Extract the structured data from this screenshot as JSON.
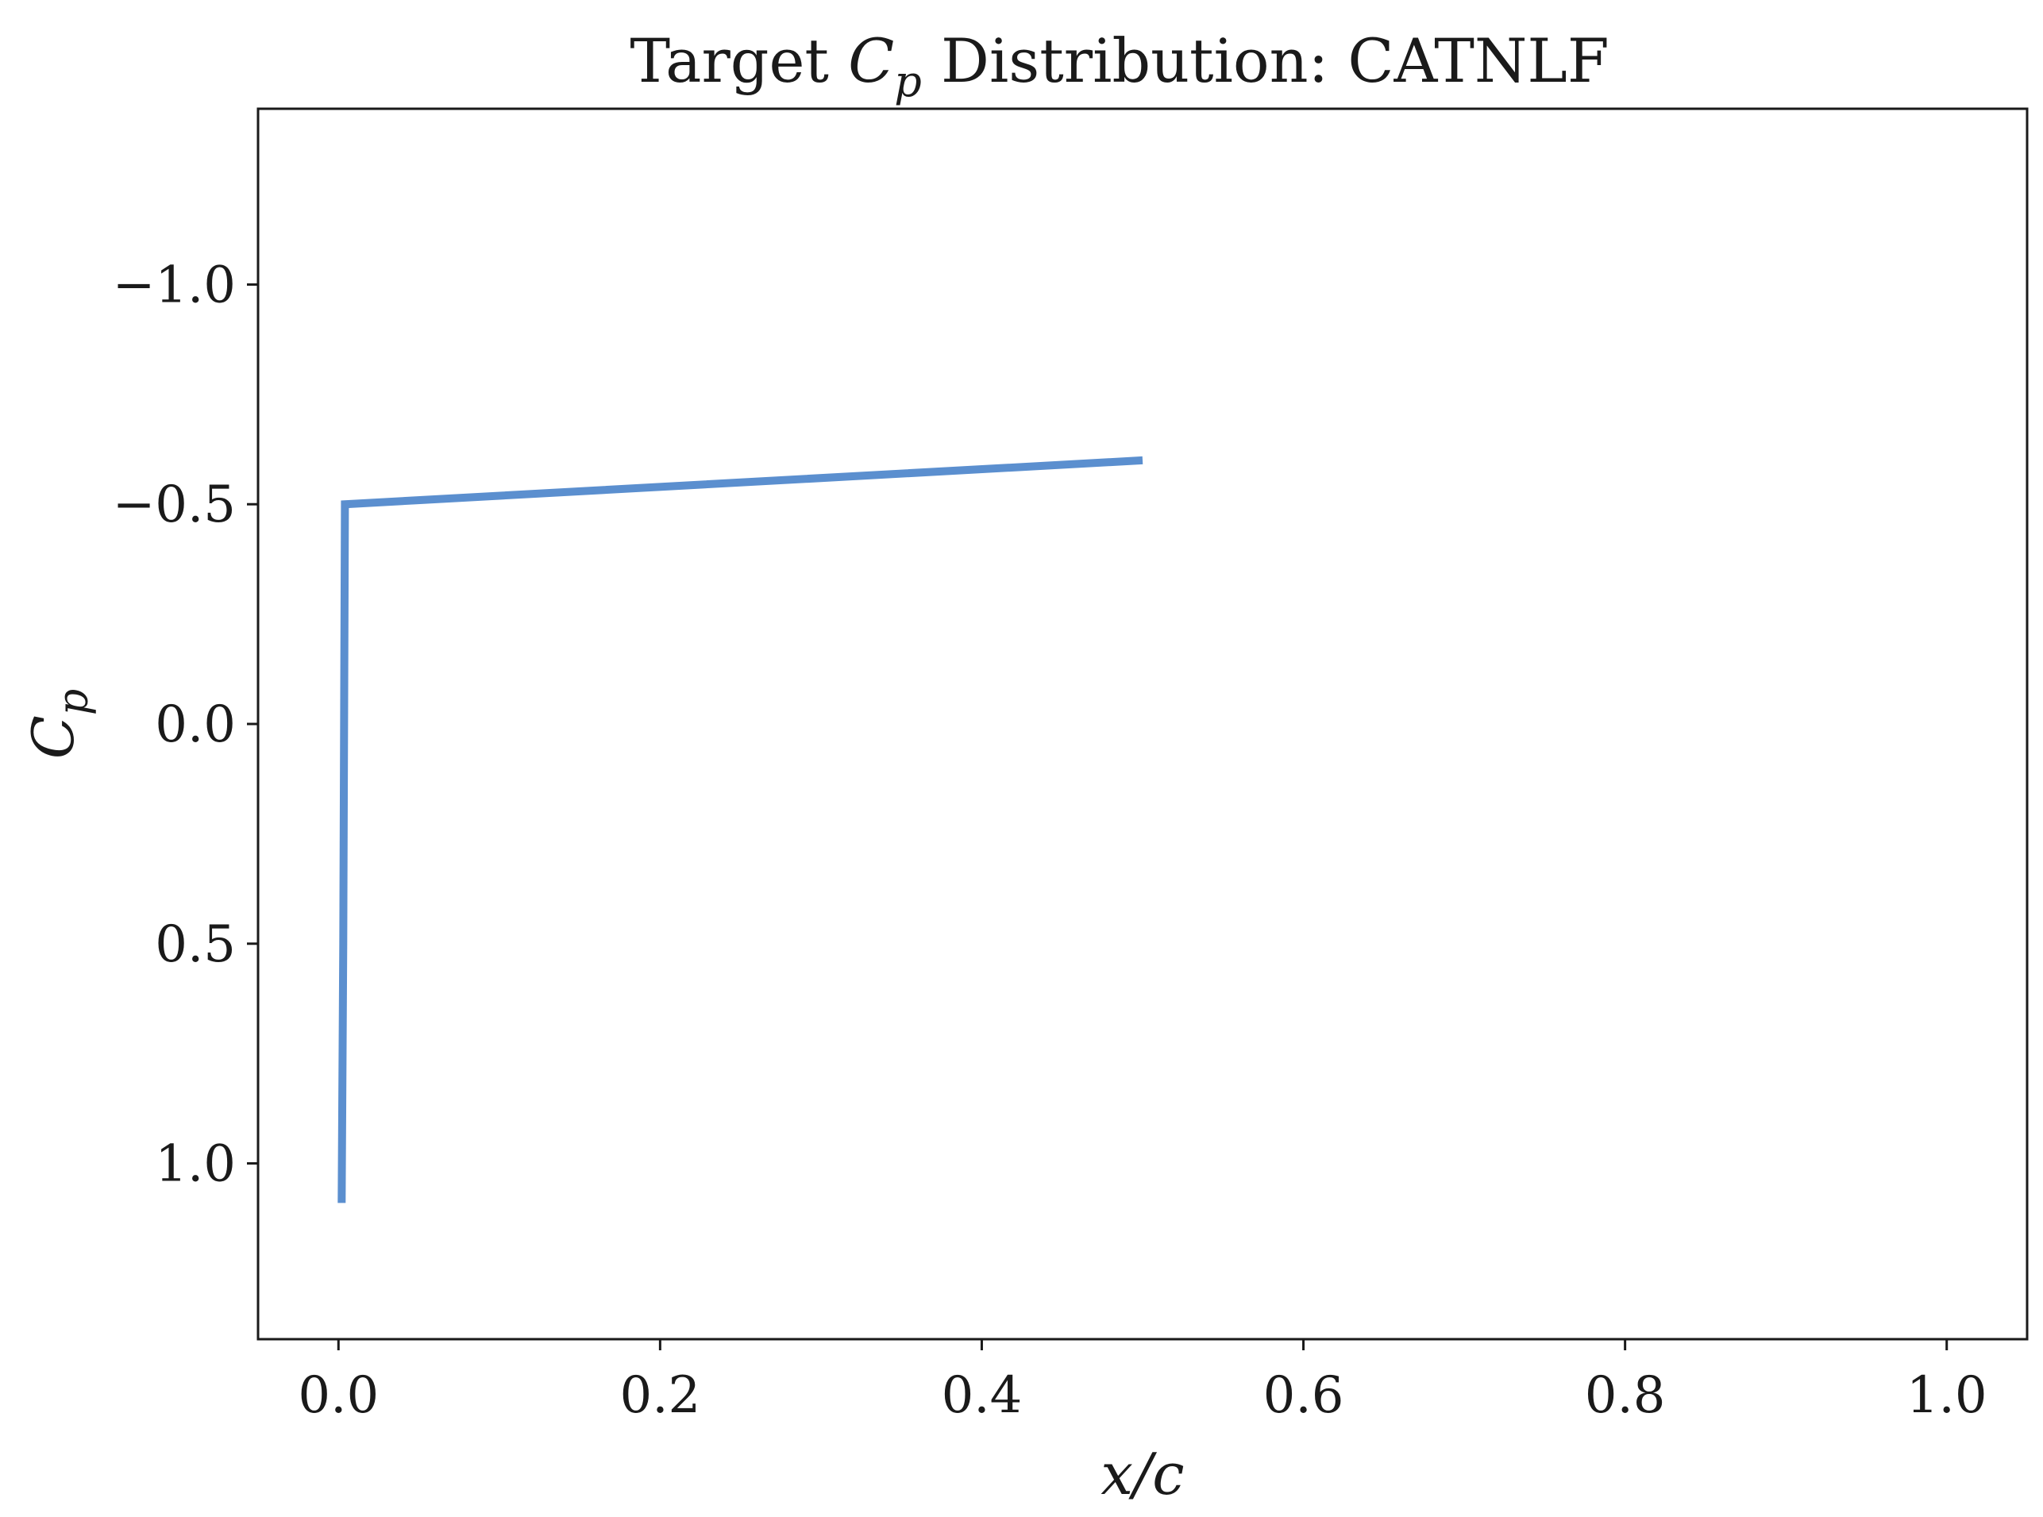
{
  "chart_data": {
    "type": "line",
    "title": {
      "prefix": "Target ",
      "symbol_main": "C",
      "symbol_sub": "p",
      "suffix": " Distribution: CATNLF"
    },
    "xlabel": "x/c",
    "ylabel": {
      "main": "C",
      "sub": "p"
    },
    "xlim": [
      -0.05,
      1.05
    ],
    "ylim": [
      1.4,
      -1.4
    ],
    "y_inverted": true,
    "grid": false,
    "x_ticks": [
      0.0,
      0.2,
      0.4,
      0.6,
      0.8,
      1.0
    ],
    "x_tick_labels": [
      "0.0",
      "0.2",
      "0.4",
      "0.6",
      "0.8",
      "1.0"
    ],
    "y_ticks": [
      -1.0,
      -0.5,
      0.0,
      0.5,
      1.0
    ],
    "y_tick_labels": [
      "−1.0",
      "−0.5",
      "0.0",
      "0.5",
      "1.0"
    ],
    "series": [
      {
        "color": "#5b8fcf",
        "x": [
          0.002,
          0.003,
          0.004,
          0.5
        ],
        "y": [
          1.09,
          0.5,
          -0.5,
          -0.6
        ]
      }
    ]
  }
}
